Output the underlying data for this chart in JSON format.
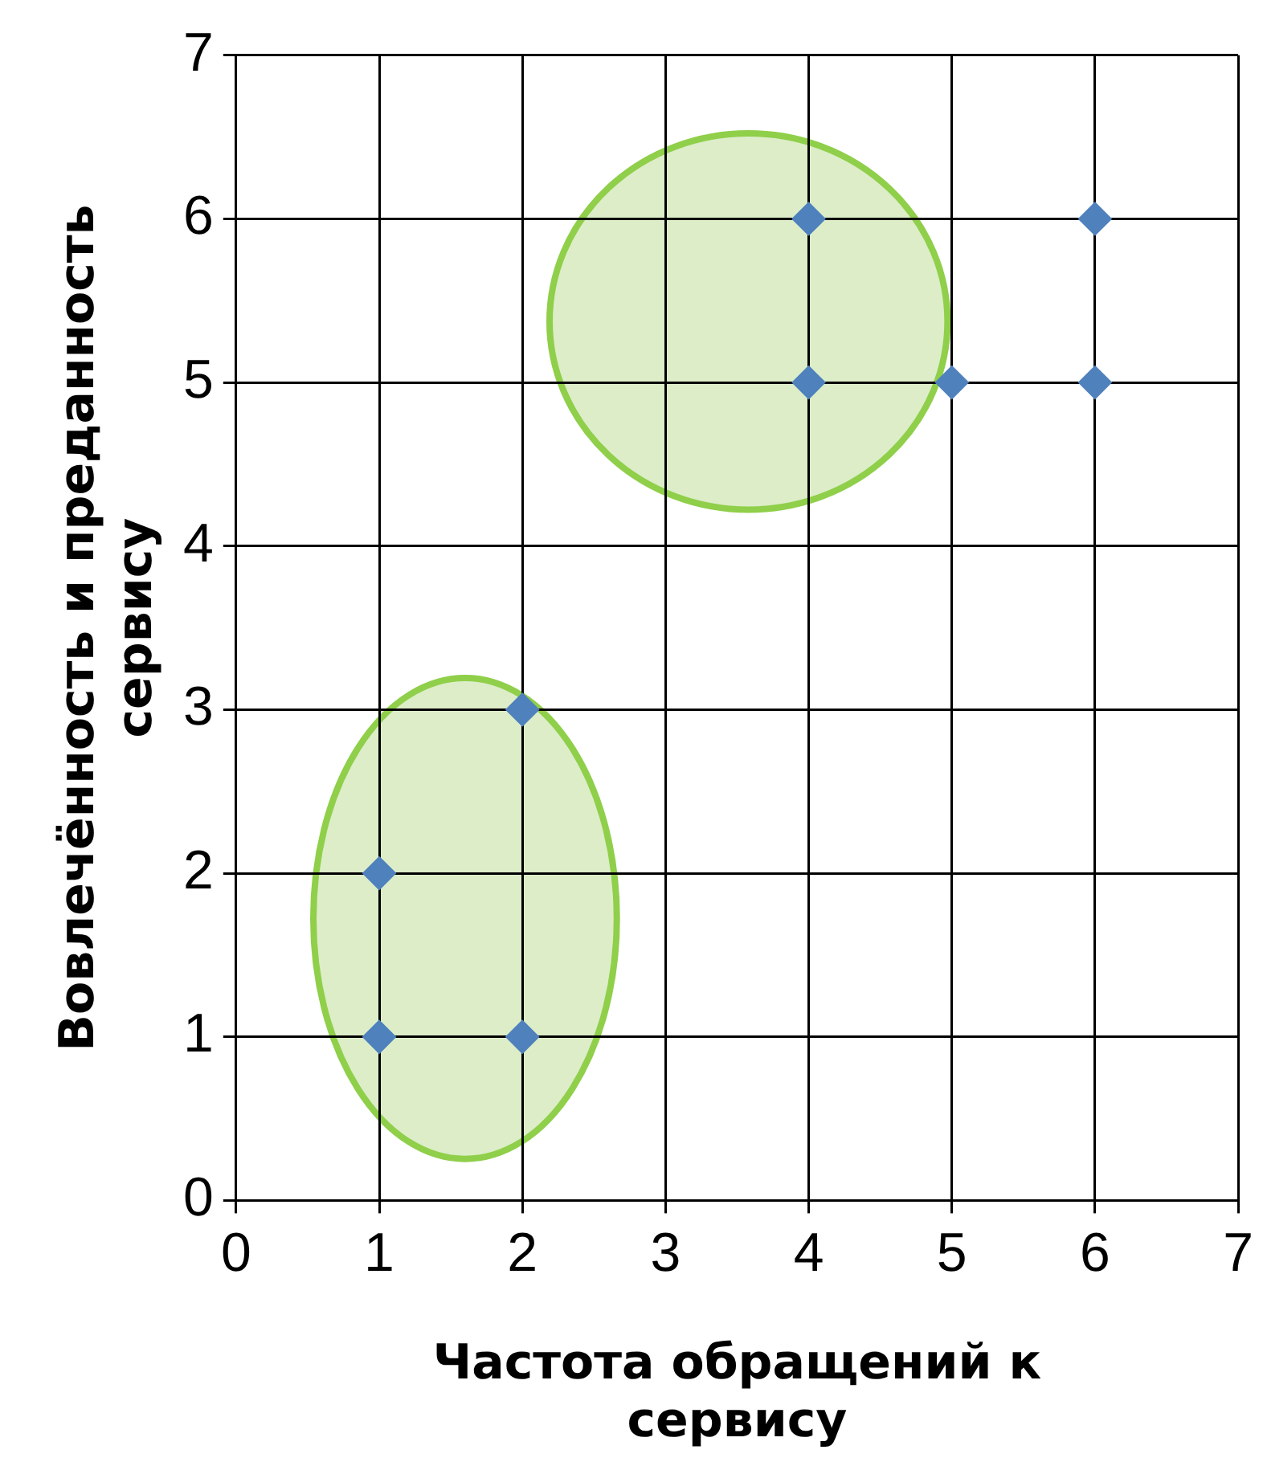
{
  "chart_data": {
    "type": "scatter",
    "xlabel": "Частота обращений к сервису",
    "ylabel": "Вовлечённость и преданность сервису",
    "x": [
      1,
      1,
      2,
      2,
      4,
      4,
      5,
      6,
      6
    ],
    "values": [
      1,
      2,
      1,
      3,
      5,
      6,
      5,
      5,
      6
    ],
    "color": "#4f81bd",
    "xlim": [
      0,
      7
    ],
    "ylim": [
      0,
      7
    ],
    "xticks": [
      0,
      1,
      2,
      3,
      4,
      5,
      6,
      7
    ],
    "yticks": [
      0,
      1,
      2,
      3,
      4,
      5,
      6,
      7
    ],
    "grid": true,
    "marker": "diamond"
  }
}
